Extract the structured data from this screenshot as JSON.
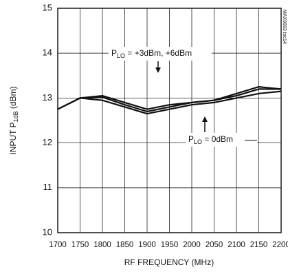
{
  "chart_data": {
    "type": "line",
    "x_label": "RF FREQUENCY (MHz)",
    "y_label": {
      "text": "INPUT P",
      "sub": "1dB",
      "rest": " (dBm)"
    },
    "watermark": "MAX9993 toc14",
    "x": [
      1700,
      1750,
      1800,
      1850,
      1900,
      1950,
      2000,
      2050,
      2100,
      2150,
      2200
    ],
    "series": [
      {
        "color": "#111111",
        "values": [
          12.75,
          13.0,
          12.95,
          12.8,
          12.65,
          12.75,
          12.85,
          12.9,
          13.0,
          13.1,
          13.15
        ]
      },
      {
        "color": "#111111",
        "values": [
          12.75,
          13.0,
          13.05,
          12.9,
          12.75,
          12.85,
          12.9,
          12.95,
          13.05,
          13.2,
          13.2
        ]
      },
      {
        "color": "#111111",
        "values": [
          12.75,
          13.0,
          13.02,
          12.85,
          12.7,
          12.8,
          12.9,
          12.95,
          13.1,
          13.25,
          13.2
        ]
      }
    ],
    "annotations": [
      {
        "text": "P",
        "sub": "LO",
        "rest": " = +3dBm, +6dBm"
      },
      {
        "text": "P",
        "sub": "LO",
        "rest": " = 0dBm"
      }
    ],
    "xlim": [
      1700,
      2200
    ],
    "xticks": [
      1700,
      1750,
      1800,
      1850,
      1900,
      1950,
      2000,
      2050,
      2100,
      2150,
      2200
    ],
    "ylim": [
      10,
      15
    ],
    "yticks": [
      10,
      11,
      12,
      13,
      14,
      15
    ],
    "grid": true
  }
}
